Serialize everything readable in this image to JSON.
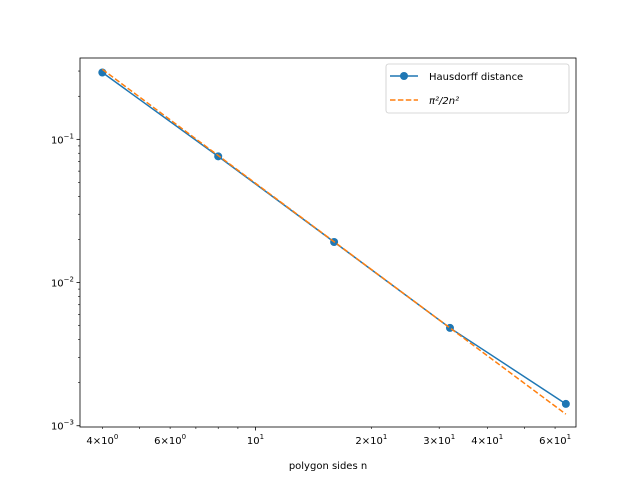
{
  "chart_data": {
    "type": "line",
    "xscale": "log",
    "yscale": "log",
    "xlim": [
      3.5,
      68
    ],
    "ylim": [
      0.00098,
      0.37
    ],
    "xlabel": "polygon sides n",
    "ylabel": "",
    "title": "",
    "grid": false,
    "legend_position": "upper-right",
    "x_major_ticks": [
      {
        "value": 10,
        "base": "10",
        "exp": "1"
      }
    ],
    "x_minor_ticks": [
      {
        "value": 4,
        "mant": "4",
        "base": "10",
        "exp": "0"
      },
      {
        "value": 6,
        "mant": "6",
        "base": "10",
        "exp": "0"
      },
      {
        "value": 20,
        "mant": "2",
        "base": "10",
        "exp": "1"
      },
      {
        "value": 30,
        "mant": "3",
        "base": "10",
        "exp": "1"
      },
      {
        "value": 40,
        "mant": "4",
        "base": "10",
        "exp": "1"
      },
      {
        "value": 60,
        "mant": "6",
        "base": "10",
        "exp": "1"
      }
    ],
    "y_major_ticks": [
      {
        "value": 0.1,
        "base": "10",
        "exp": "−1"
      },
      {
        "value": 0.01,
        "base": "10",
        "exp": "−2"
      },
      {
        "value": 0.001,
        "base": "10",
        "exp": "−3"
      }
    ],
    "series": [
      {
        "name": "Hausdorff distance",
        "style": "solid-marker",
        "color": "#1f77b4",
        "x": [
          4,
          8,
          16,
          32,
          64
        ],
        "y": [
          0.293,
          0.0761,
          0.0192,
          0.00482,
          0.00142
        ]
      },
      {
        "name": "π²/2n²",
        "style": "dashed",
        "color": "#ff7f0e",
        "x": [
          4,
          8,
          16,
          32,
          64
        ],
        "y": [
          0.30843,
          0.07711,
          0.01928,
          0.00482,
          0.001205
        ]
      }
    ]
  }
}
